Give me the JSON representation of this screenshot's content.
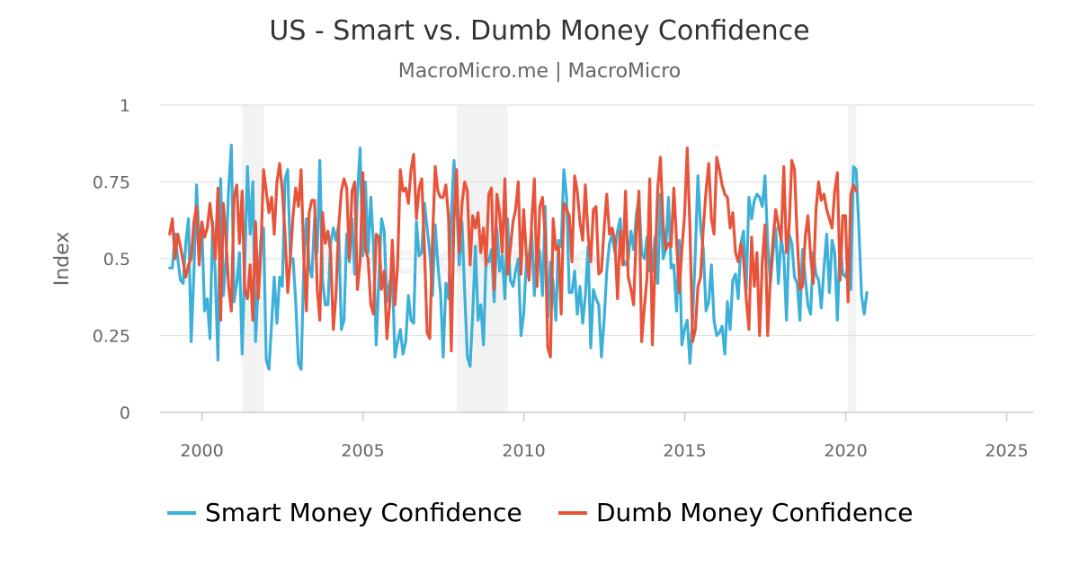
{
  "chart_data": {
    "type": "line",
    "title": "US - Smart vs. Dumb Money Confidence",
    "subtitle": "MacroMicro.me | MacroMicro",
    "watermark": "MacroMicro",
    "xlabel": "",
    "ylabel": "Index",
    "xlim": [
      1998.7,
      2025.85
    ],
    "ylim": [
      0,
      1
    ],
    "x_ticks": [
      2000,
      2005,
      2010,
      2015,
      2020,
      2025
    ],
    "y_ticks": [
      {
        "value": 0,
        "label": "0"
      },
      {
        "value": 0.25,
        "label": "0.25"
      },
      {
        "value": 0.5,
        "label": "0.5"
      },
      {
        "value": 0.75,
        "label": "0.75"
      },
      {
        "value": 1,
        "label": "1"
      }
    ],
    "grid": true,
    "legend_position": "bottom-center",
    "recessions": [
      {
        "start": 2001.25,
        "end": 2001.92
      },
      {
        "start": 2007.92,
        "end": 2009.5
      },
      {
        "start": 2020.08,
        "end": 2020.33
      }
    ],
    "colors": {
      "smart": "#3cb0d8",
      "dumb": "#e8543a",
      "grid": "#e2e2e2",
      "axis": "#cccccc",
      "recession": "#f2f2f2"
    },
    "series": [
      {
        "name": "Smart Money Confidence",
        "key": "smart",
        "start": 1999.0,
        "step": 0.0833,
        "values": [
          0.47,
          0.47,
          0.58,
          0.5,
          0.43,
          0.42,
          0.55,
          0.63,
          0.23,
          0.45,
          0.74,
          0.56,
          0.6,
          0.33,
          0.37,
          0.24,
          0.62,
          0.45,
          0.17,
          0.76,
          0.38,
          0.5,
          0.73,
          0.87,
          0.36,
          0.42,
          0.52,
          0.19,
          0.48,
          0.8,
          0.58,
          0.75,
          0.23,
          0.42,
          0.56,
          0.6,
          0.17,
          0.14,
          0.29,
          0.44,
          0.29,
          0.44,
          0.41,
          0.76,
          0.79,
          0.5,
          0.5,
          0.36,
          0.16,
          0.14,
          0.48,
          0.63,
          0.48,
          0.44,
          0.63,
          0.52,
          0.82,
          0.43,
          0.35,
          0.35,
          0.55,
          0.6,
          0.56,
          0.61,
          0.27,
          0.3,
          0.58,
          0.49,
          0.63,
          0.45,
          0.71,
          0.86,
          0.51,
          0.75,
          0.52,
          0.7,
          0.54,
          0.22,
          0.44,
          0.63,
          0.59,
          0.36,
          0.42,
          0.46,
          0.18,
          0.23,
          0.27,
          0.19,
          0.23,
          0.38,
          0.3,
          0.29,
          0.62,
          0.51,
          0.52,
          0.68,
          0.6,
          0.52,
          0.38,
          0.61,
          0.48,
          0.39,
          0.18,
          0.42,
          0.37,
          0.64,
          0.82,
          0.68,
          0.48,
          0.62,
          0.39,
          0.18,
          0.15,
          0.32,
          0.54,
          0.3,
          0.35,
          0.22,
          0.5,
          0.49,
          0.53,
          0.36,
          0.6,
          0.46,
          0.51,
          0.37,
          0.63,
          0.43,
          0.41,
          0.46,
          0.5,
          0.25,
          0.32,
          0.49,
          0.51,
          0.59,
          0.38,
          0.55,
          0.52,
          0.38,
          0.67,
          0.31,
          0.49,
          0.42,
          0.3,
          0.56,
          0.54,
          0.79,
          0.7,
          0.39,
          0.39,
          0.46,
          0.32,
          0.41,
          0.29,
          0.38,
          0.54,
          0.21,
          0.4,
          0.37,
          0.35,
          0.18,
          0.3,
          0.46,
          0.55,
          0.58,
          0.52,
          0.59,
          0.63,
          0.5,
          0.48,
          0.5,
          0.59,
          0.53,
          0.64,
          0.7,
          0.52,
          0.5,
          0.57,
          0.46,
          0.46,
          0.57,
          0.42,
          0.71,
          0.5,
          0.53,
          0.7,
          0.47,
          0.48,
          0.33,
          0.56,
          0.22,
          0.27,
          0.3,
          0.16,
          0.3,
          0.52,
          0.77,
          0.6,
          0.53,
          0.33,
          0.36,
          0.48,
          0.3,
          0.25,
          0.26,
          0.28,
          0.19,
          0.36,
          0.27,
          0.43,
          0.45,
          0.37,
          0.55,
          0.59,
          0.4,
          0.7,
          0.63,
          0.69,
          0.71,
          0.7,
          0.67,
          0.77,
          0.55,
          0.42,
          0.52,
          0.6,
          0.42,
          0.57,
          0.51,
          0.3,
          0.58,
          0.55,
          0.44,
          0.42,
          0.3,
          0.53,
          0.44,
          0.35,
          0.32,
          0.52,
          0.45,
          0.43,
          0.34,
          0.47,
          0.58,
          0.39,
          0.56,
          0.52,
          0.3,
          0.56,
          0.45,
          0.44,
          0.48,
          0.4,
          0.8,
          0.79,
          0.6,
          0.38,
          0.32,
          0.39
        ]
      },
      {
        "name": "Dumb Money Confidence",
        "key": "dumb",
        "start": 1999.0,
        "step": 0.0833,
        "values": [
          0.58,
          0.63,
          0.5,
          0.58,
          0.54,
          0.49,
          0.44,
          0.48,
          0.5,
          0.62,
          0.67,
          0.48,
          0.62,
          0.57,
          0.6,
          0.68,
          0.6,
          0.5,
          0.73,
          0.3,
          0.68,
          0.56,
          0.41,
          0.33,
          0.7,
          0.74,
          0.55,
          0.72,
          0.4,
          0.37,
          0.48,
          0.3,
          0.62,
          0.37,
          0.52,
          0.79,
          0.72,
          0.65,
          0.7,
          0.58,
          0.75,
          0.81,
          0.72,
          0.58,
          0.39,
          0.5,
          0.64,
          0.73,
          0.67,
          0.79,
          0.5,
          0.33,
          0.65,
          0.69,
          0.69,
          0.4,
          0.3,
          0.65,
          0.55,
          0.59,
          0.52,
          0.27,
          0.38,
          0.6,
          0.72,
          0.76,
          0.73,
          0.5,
          0.72,
          0.75,
          0.4,
          0.49,
          0.78,
          0.53,
          0.5,
          0.35,
          0.32,
          0.58,
          0.57,
          0.4,
          0.46,
          0.24,
          0.35,
          0.56,
          0.35,
          0.48,
          0.79,
          0.72,
          0.73,
          0.68,
          0.79,
          0.84,
          0.63,
          0.73,
          0.76,
          0.53,
          0.26,
          0.24,
          0.56,
          0.8,
          0.72,
          0.7,
          0.7,
          0.74,
          0.63,
          0.2,
          0.63,
          0.79,
          0.52,
          0.68,
          0.75,
          0.72,
          0.48,
          0.64,
          0.6,
          0.65,
          0.52,
          0.6,
          0.48,
          0.71,
          0.73,
          0.4,
          0.71,
          0.65,
          0.52,
          0.76,
          0.45,
          0.53,
          0.62,
          0.66,
          0.75,
          0.45,
          0.66,
          0.51,
          0.43,
          0.62,
          0.76,
          0.41,
          0.67,
          0.7,
          0.58,
          0.21,
          0.18,
          0.63,
          0.53,
          0.54,
          0.32,
          0.68,
          0.66,
          0.64,
          0.49,
          0.77,
          0.72,
          0.62,
          0.56,
          0.74,
          0.58,
          0.49,
          0.66,
          0.67,
          0.45,
          0.46,
          0.6,
          0.71,
          0.58,
          0.6,
          0.56,
          0.37,
          0.59,
          0.48,
          0.72,
          0.44,
          0.4,
          0.35,
          0.58,
          0.72,
          0.23,
          0.34,
          0.44,
          0.76,
          0.22,
          0.48,
          0.73,
          0.83,
          0.61,
          0.53,
          0.55,
          0.54,
          0.73,
          0.56,
          0.39,
          0.53,
          0.64,
          0.86,
          0.6,
          0.23,
          0.27,
          0.41,
          0.44,
          0.6,
          0.72,
          0.81,
          0.63,
          0.58,
          0.83,
          0.79,
          0.74,
          0.71,
          0.7,
          0.6,
          0.65,
          0.52,
          0.49,
          0.55,
          0.5,
          0.37,
          0.27,
          0.57,
          0.41,
          0.52,
          0.25,
          0.49,
          0.61,
          0.25,
          0.44,
          0.56,
          0.66,
          0.61,
          0.56,
          0.8,
          0.52,
          0.6,
          0.82,
          0.79,
          0.57,
          0.4,
          0.41,
          0.57,
          0.64,
          0.51,
          0.42,
          0.66,
          0.75,
          0.69,
          0.71,
          0.66,
          0.63,
          0.6,
          0.72,
          0.78,
          0.43,
          0.64,
          0.64,
          0.36,
          0.71,
          0.74,
          0.72
        ]
      }
    ]
  }
}
